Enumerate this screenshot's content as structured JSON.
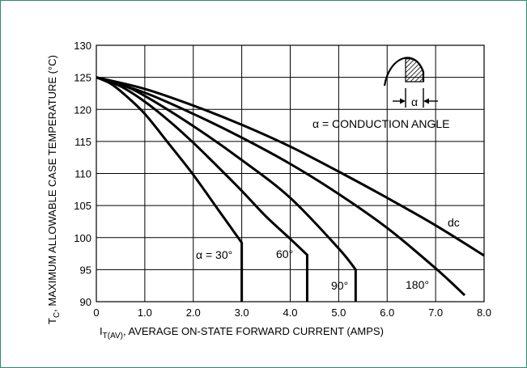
{
  "chart_data": {
    "type": "line",
    "xlabel_sub": "T(AV)",
    "xlabel_rest": ", AVERAGE ON-STATE FORWARD CURRENT (AMPS)",
    "xlabel_main": "I",
    "ylabel_main": "T",
    "ylabel_sub": "C",
    "ylabel_rest": ", MAXIMUM ALLOWABLE CASE TEMPERATURE (°C)",
    "xlim": [
      0,
      8
    ],
    "ylim": [
      90,
      130
    ],
    "x_ticks": [
      0,
      1,
      2,
      3,
      4,
      5,
      6,
      7,
      8
    ],
    "x_tick_labels": [
      "0",
      "1.0",
      "2.0",
      "3.0",
      "4.0",
      "5.0",
      "6.0",
      "7.0",
      "8.0"
    ],
    "y_ticks": [
      90,
      95,
      100,
      105,
      110,
      115,
      120,
      125,
      130
    ],
    "y_tick_labels": [
      "90",
      "95",
      "100",
      "105",
      "110",
      "115",
      "120",
      "125",
      "130"
    ],
    "grid": true,
    "series": [
      {
        "name": "α = 30°",
        "points": [
          [
            0,
            125
          ],
          [
            0.3,
            124
          ],
          [
            0.6,
            122.2
          ],
          [
            1.0,
            119.3
          ],
          [
            1.5,
            114.6
          ],
          [
            2.0,
            109.8
          ],
          [
            2.5,
            104.5
          ],
          [
            3.0,
            99.2
          ],
          [
            3.0,
            90
          ]
        ]
      },
      {
        "name": "60°",
        "points": [
          [
            0,
            125
          ],
          [
            0.5,
            123.6
          ],
          [
            1.0,
            121.2
          ],
          [
            1.5,
            118.2
          ],
          [
            2.0,
            114.8
          ],
          [
            2.5,
            111.1
          ],
          [
            3.0,
            107.3
          ],
          [
            3.5,
            103.3
          ],
          [
            4.0,
            99.8
          ],
          [
            4.35,
            97.3
          ],
          [
            4.35,
            90
          ]
        ]
      },
      {
        "name": "90°",
        "points": [
          [
            0,
            125
          ],
          [
            0.5,
            123.9
          ],
          [
            1.0,
            122.1
          ],
          [
            2.0,
            117.4
          ],
          [
            3.0,
            112.1
          ],
          [
            4.0,
            106.2
          ],
          [
            5.0,
            98.3
          ],
          [
            5.35,
            95
          ],
          [
            5.35,
            90
          ]
        ]
      },
      {
        "name": "180°",
        "points": [
          [
            0,
            125
          ],
          [
            1.0,
            122.6
          ],
          [
            2.0,
            119.3
          ],
          [
            3.0,
            115.6
          ],
          [
            4.0,
            111.5
          ],
          [
            5.0,
            106.8
          ],
          [
            6.0,
            101.5
          ],
          [
            7.0,
            95.2
          ],
          [
            7.6,
            91
          ]
        ]
      },
      {
        "name": "dc",
        "points": [
          [
            0,
            125
          ],
          [
            1.0,
            123.2
          ],
          [
            2.0,
            120.6
          ],
          [
            3.0,
            117.6
          ],
          [
            4.0,
            114.2
          ],
          [
            5.0,
            110.3
          ],
          [
            6.0,
            106.2
          ],
          [
            7.0,
            101.9
          ],
          [
            8.0,
            97.2
          ]
        ]
      }
    ],
    "annotations": {
      "conduction": "α = CONDUCTION ANGLE",
      "alpha": "α",
      "dc": "dc",
      "deg180": "180°",
      "deg90": "90°",
      "deg60": "60°",
      "deg30": "α = 30°"
    },
    "colors": {
      "frame": "#2e8b6f",
      "line": "#000000",
      "grid": "#000000"
    }
  }
}
